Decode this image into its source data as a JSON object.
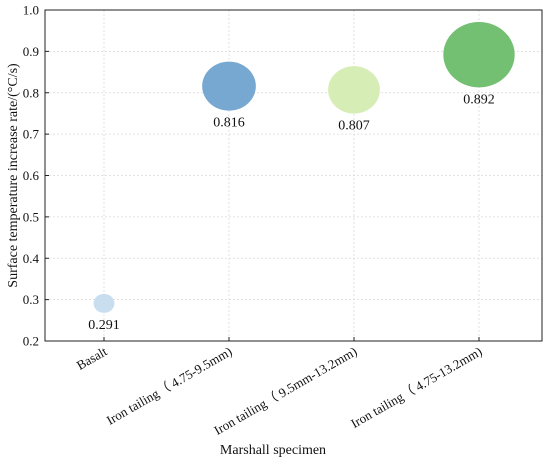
{
  "chart_data": {
    "type": "scatter",
    "title": "",
    "xlabel": "Marshall specimen",
    "ylabel": "Surface temperature increase rate/(°C/s)",
    "ylim": [
      0.2,
      1.0
    ],
    "yticks": [
      "0.2",
      "0.3",
      "0.4",
      "0.5",
      "0.6",
      "0.7",
      "0.8",
      "0.9",
      "1.0"
    ],
    "categories": [
      "Basalt",
      "Iron tailing（ 4.75-9.5mm)",
      "Iron tailing（ 9.5mm-13.2mm)",
      "Iron tailing（ 4.75-13.2mm)"
    ],
    "values": [
      0.291,
      0.816,
      0.807,
      0.892
    ],
    "data_labels": [
      "0.291",
      "0.816",
      "0.807",
      "0.892"
    ],
    "colors": [
      "#c6dcee",
      "#6fa3cf",
      "#d4ecb2",
      "#6cbd6a"
    ],
    "grid": true,
    "bubble_size": "proportional to value"
  }
}
